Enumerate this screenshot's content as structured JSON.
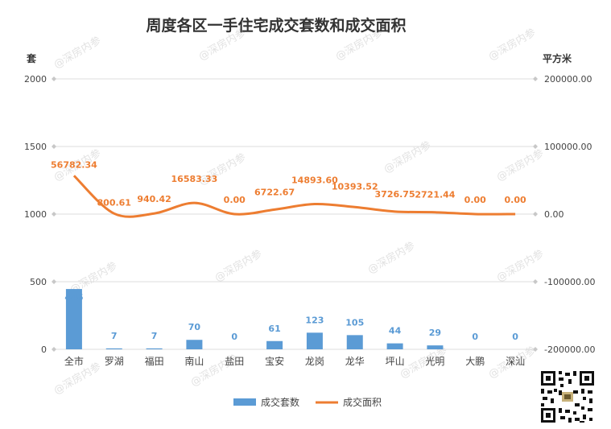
{
  "chart_data": {
    "type": "bar-line",
    "title": "周度各区一手住宅成交套数和成交面积",
    "left_axis_unit": "套",
    "right_axis_unit": "平方米",
    "categories": [
      "全市",
      "罗湖",
      "福田",
      "南山",
      "盐田",
      "宝安",
      "龙岗",
      "龙华",
      "坪山",
      "光明",
      "大鹏",
      "深汕"
    ],
    "left_axis": {
      "ylim": [
        0,
        2000
      ],
      "ticks": [
        0,
        500,
        1000,
        1500,
        2000
      ]
    },
    "right_axis": {
      "ylim": [
        -200000,
        200000
      ],
      "ticks": [
        -200000,
        -100000,
        0,
        100000,
        200000
      ],
      "tick_labels": [
        "-200000.00",
        "-100000.00",
        "0.00",
        "100000.00",
        "200000.00"
      ]
    },
    "series": [
      {
        "name": "成交套数",
        "type": "bar",
        "axis": "left",
        "color": "#5b9bd5",
        "values": [
          446,
          7,
          7,
          70,
          0,
          61,
          123,
          105,
          44,
          29,
          0,
          0
        ],
        "labels": [
          "446",
          "7",
          "7",
          "70",
          "0",
          "61",
          "123",
          "105",
          "44",
          "29",
          "0",
          "0"
        ]
      },
      {
        "name": "成交面积",
        "type": "line",
        "axis": "right",
        "color": "#ed7d31",
        "values": [
          56782.34,
          800.61,
          940.42,
          16583.33,
          0,
          6722.67,
          14893.6,
          10393.52,
          3726.75,
          2721.44,
          0,
          0
        ],
        "labels": [
          "56782.34",
          "800.61",
          "940.42",
          "16583.33",
          "0.00",
          "6722.67",
          "14893.60",
          "10393.52",
          "3726.75",
          "2721.44",
          "0.00",
          "0.00"
        ]
      }
    ],
    "grid": true,
    "legend_position": "bottom"
  },
  "watermark": "@深房内参",
  "qr_code_icon": "qr-code-icon"
}
